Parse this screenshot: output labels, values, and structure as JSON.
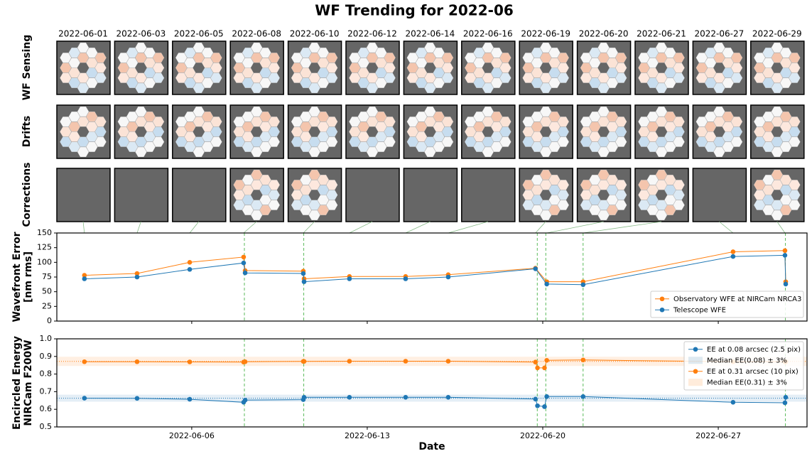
{
  "title": "WF Trending for 2022-06",
  "image_grid": {
    "dates": [
      "2022-06-01",
      "2022-06-03",
      "2022-06-05",
      "2022-06-08",
      "2022-06-10",
      "2022-06-12",
      "2022-06-14",
      "2022-06-16",
      "2022-06-19",
      "2022-06-20",
      "2022-06-21",
      "2022-06-27",
      "2022-06-29"
    ],
    "rows": [
      "WF Sensing",
      "Drifts",
      "Corrections"
    ]
  },
  "chart_data": [
    {
      "type": "line",
      "ylabel": [
        "Wavefront Error",
        "[nm rms]"
      ],
      "x": [
        1.72,
        3.82,
        5.92,
        8.07,
        8.13,
        10.45,
        10.48,
        12.29,
        14.53,
        16.23,
        19.71,
        20.16,
        21.61,
        27.59,
        29.66,
        29.69
      ],
      "xlim": [
        0.62,
        30.54
      ],
      "xticks": [
        6,
        13,
        20,
        27
      ],
      "ylim": [
        0,
        150
      ],
      "yticks": [
        0,
        25,
        50,
        75,
        100,
        125,
        150
      ],
      "series": [
        {
          "name": "Observatory WFE at NIRCam NRCA3",
          "color": "#ff7f0e",
          "values": [
            78,
            81,
            100,
            109,
            86,
            85,
            72,
            76,
            76,
            79,
            90,
            67,
            67,
            118,
            120,
            67
          ]
        },
        {
          "name": "Telescope WFE",
          "color": "#1f77b4",
          "values": [
            72,
            75,
            88,
            99,
            82,
            81,
            67,
            72,
            72,
            75,
            89,
            63,
            62,
            110,
            112,
            63
          ]
        }
      ],
      "legend": "lower right",
      "correction_dates": [
        8.1,
        10.47,
        19.78,
        20.12,
        21.61,
        29.68
      ]
    },
    {
      "type": "line",
      "ylabel": [
        "Encircled Energy",
        "NIRCam F200W"
      ],
      "xlabel": "Date",
      "x": [
        1.72,
        3.82,
        5.92,
        8.07,
        8.13,
        10.45,
        10.48,
        12.29,
        14.53,
        16.23,
        19.71,
        19.79,
        20.07,
        20.16,
        21.61,
        27.59,
        29.66,
        29.69
      ],
      "xlim": [
        0.62,
        30.54
      ],
      "xticks": [
        {
          "value": 6,
          "label": "2022-06-06"
        },
        {
          "value": 13,
          "label": "2022-06-13"
        },
        {
          "value": 20,
          "label": "2022-06-20"
        },
        {
          "value": 27,
          "label": "2022-06-27"
        }
      ],
      "ylim": [
        0.5,
        1
      ],
      "yticks": [
        0.5,
        0.6,
        0.7,
        0.8,
        0.9,
        {
          "value": 1,
          "label": "1.0"
        }
      ],
      "series": [
        {
          "name": "EE at 0.08 arcsec (2.5 pix)",
          "color": "#1f77b4",
          "values": [
            0.663,
            0.662,
            0.657,
            0.64,
            0.652,
            0.655,
            0.668,
            0.668,
            0.668,
            0.668,
            0.658,
            0.62,
            0.615,
            0.672,
            0.672,
            0.64,
            0.637,
            0.668
          ]
        },
        {
          "name": "Median EE(0.08) ± 3%",
          "color": "#1f77b4",
          "median": 0.663,
          "band_pct": 3
        },
        {
          "name": "EE at 0.31 arcsec (10 pix)",
          "color": "#ff7f0e",
          "values": [
            0.87,
            0.87,
            0.869,
            0.868,
            0.87,
            0.872,
            0.872,
            0.873,
            0.873,
            0.873,
            0.868,
            0.835,
            0.835,
            0.878,
            0.88,
            0.87,
            0.87,
            0.87
          ]
        },
        {
          "name": "Median EE(0.31) ± 3%",
          "color": "#ff7f0e",
          "median": 0.872,
          "band_pct": 3
        }
      ],
      "legend": "upper right",
      "correction_dates": [
        8.1,
        10.47,
        19.78,
        20.12,
        21.61,
        29.68
      ]
    }
  ]
}
